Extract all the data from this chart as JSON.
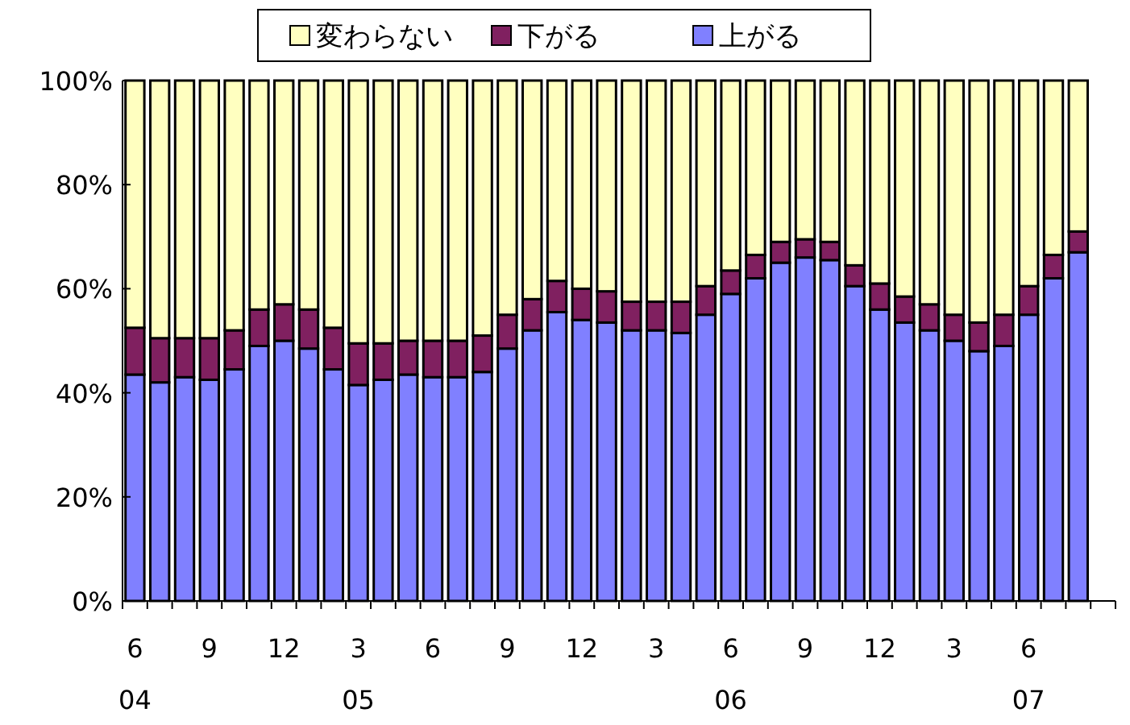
{
  "chart_data": {
    "type": "bar",
    "stacked": true,
    "legend": "top",
    "grid": false,
    "categories": [
      "6\n04",
      null,
      null,
      "9",
      null,
      null,
      "12",
      null,
      null,
      "3\n05",
      null,
      null,
      "6",
      null,
      null,
      "9",
      null,
      null,
      "12",
      null,
      null,
      "3",
      null,
      null,
      "6\n06",
      null,
      null,
      "9",
      null,
      null,
      "12",
      null,
      null,
      "3",
      null,
      null,
      "6\n07",
      null,
      null,
      null
    ],
    "ylim": [
      0,
      100
    ],
    "yticks": [
      {
        "value": 0,
        "label": "0%"
      },
      {
        "value": 20,
        "label": "20%"
      },
      {
        "value": 40,
        "label": "40%"
      },
      {
        "value": 60,
        "label": "60%"
      },
      {
        "value": 80,
        "label": "80%"
      },
      {
        "value": 100,
        "label": "100%"
      }
    ],
    "series": [
      {
        "name": "上がる",
        "color": "#8080ff",
        "values": [
          43.5,
          42,
          43,
          42.5,
          44.5,
          49,
          50,
          48.5,
          44.5,
          41.5,
          42.5,
          43.5,
          43,
          43,
          44,
          48.5,
          52,
          55.5,
          54,
          53.5,
          52,
          52,
          51.5,
          55,
          59,
          62,
          65,
          66,
          65.5,
          60.5,
          56,
          53.5,
          52,
          50,
          48,
          49,
          55,
          62,
          67,
          null
        ]
      },
      {
        "name": "下がる",
        "color": "#802060",
        "values": [
          9,
          8.5,
          7.5,
          8,
          7.5,
          7,
          7,
          7.5,
          8,
          8,
          7,
          6.5,
          7,
          7,
          7,
          6.5,
          6,
          6,
          6,
          6,
          5.5,
          5.5,
          6,
          5.5,
          4.5,
          4.5,
          4,
          3.5,
          3.5,
          4,
          5,
          5,
          5,
          5,
          5.5,
          6,
          5.5,
          4.5,
          4,
          null
        ]
      },
      {
        "name": "変わらない",
        "color": "#ffffc0",
        "values": [
          47.5,
          49.5,
          49.5,
          49.5,
          48,
          44,
          43,
          44,
          47.5,
          50.5,
          50.5,
          50,
          50,
          50,
          49,
          45,
          42,
          38.5,
          40,
          40.5,
          42.5,
          42.5,
          42.5,
          39.5,
          36.5,
          33.5,
          31,
          30.5,
          31,
          35.5,
          39,
          41.5,
          43,
          45,
          46.5,
          45,
          39.5,
          33.5,
          29,
          null
        ]
      }
    ]
  }
}
